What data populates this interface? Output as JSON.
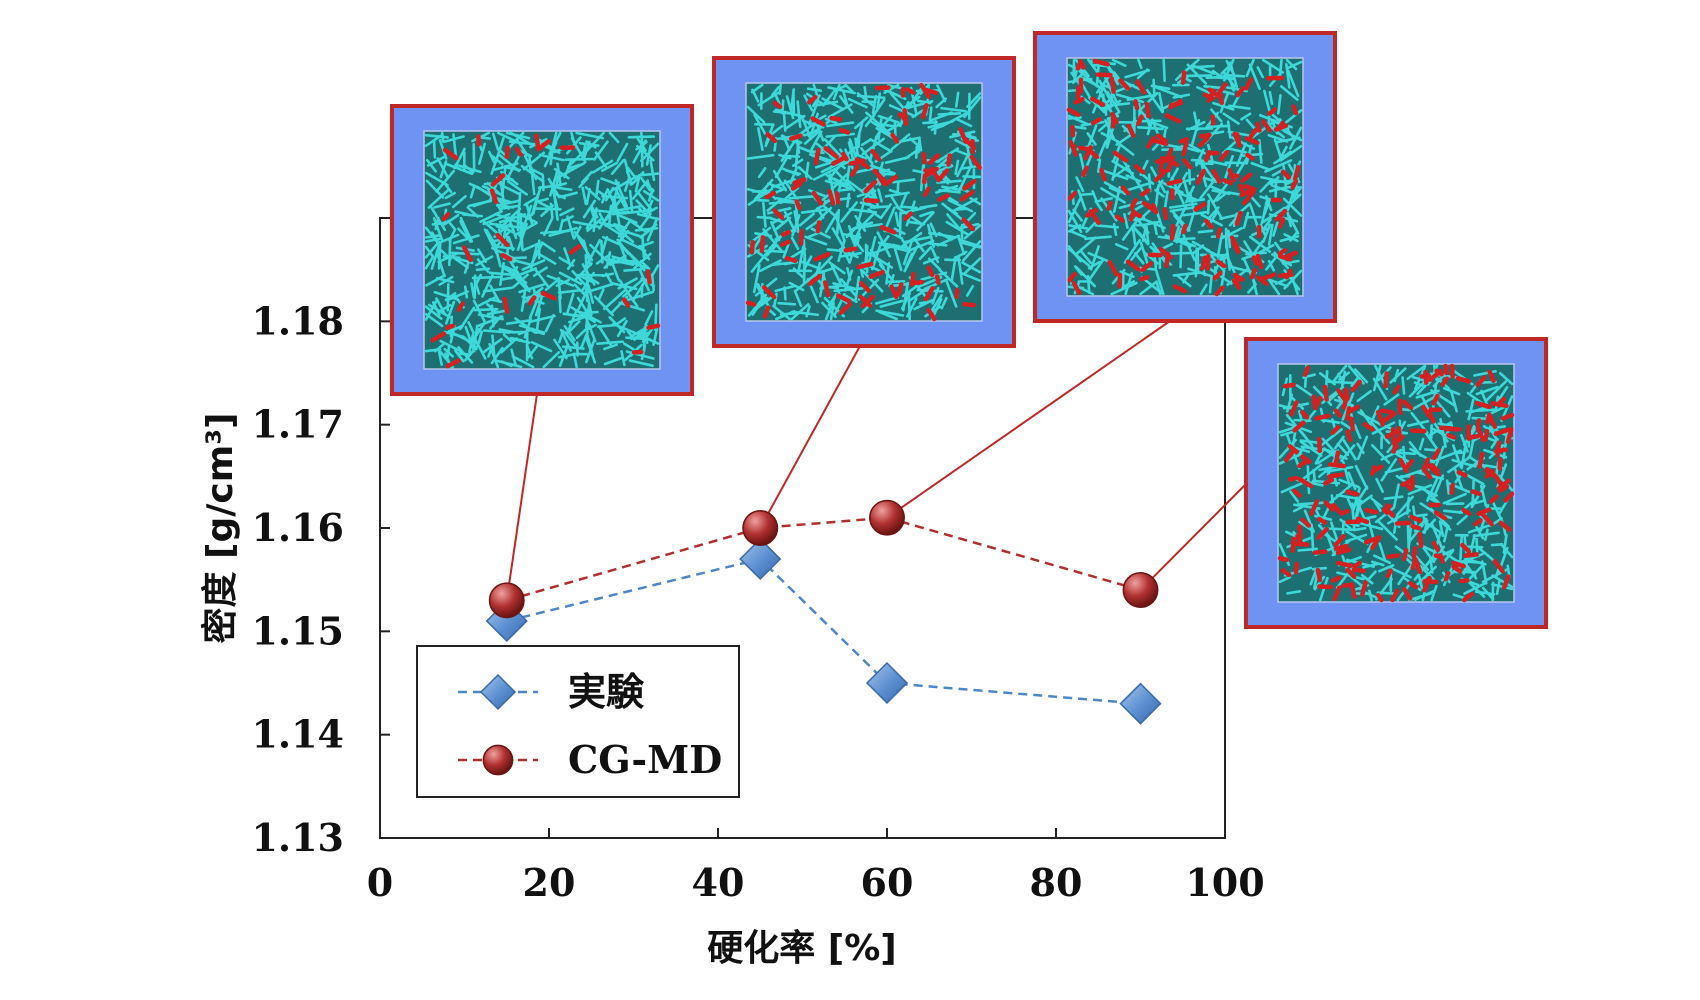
{
  "chart_data": {
    "type": "line",
    "xlabel": "硬化率 [%]",
    "ylabel": "密度 [g/cm³]",
    "xlim": [
      0,
      100
    ],
    "ylim": [
      1.13,
      1.19
    ],
    "xticks": [
      0,
      20,
      40,
      60,
      80,
      100
    ],
    "xtick_labels": [
      "0",
      "20",
      "40",
      "60",
      "80",
      "100"
    ],
    "yticks": [
      1.13,
      1.14,
      1.15,
      1.16,
      1.17,
      1.18
    ],
    "ytick_labels": [
      "1.13",
      "1.14",
      "1.15",
      "1.16",
      "1.17",
      "1.18"
    ],
    "grid": false,
    "legend_position": "bottom-left",
    "series": [
      {
        "name": "実験",
        "marker": "diamond",
        "line_style": "dashed",
        "color": "#4f86c6",
        "x": [
          15,
          45,
          60,
          90
        ],
        "y": [
          1.151,
          1.157,
          1.145,
          1.143
        ]
      },
      {
        "name": "CG-MD",
        "marker": "circle",
        "line_style": "dashed",
        "color": "#b03030",
        "x": [
          15,
          45,
          60,
          90
        ],
        "y": [
          1.153,
          1.16,
          1.161,
          1.154
        ]
      }
    ],
    "insets": [
      {
        "point_series": 1,
        "point_index": 0,
        "red_fraction": 0.05
      },
      {
        "point_series": 1,
        "point_index": 1,
        "red_fraction": 0.16
      },
      {
        "point_series": 1,
        "point_index": 2,
        "red_fraction": 0.23
      },
      {
        "point_series": 1,
        "point_index": 3,
        "red_fraction": 0.32
      }
    ],
    "colors": {
      "inset_border": "#c02828",
      "inset_frame": "#6f93f2",
      "fiber": "#3ed8d8",
      "cured": "#d42020"
    }
  }
}
